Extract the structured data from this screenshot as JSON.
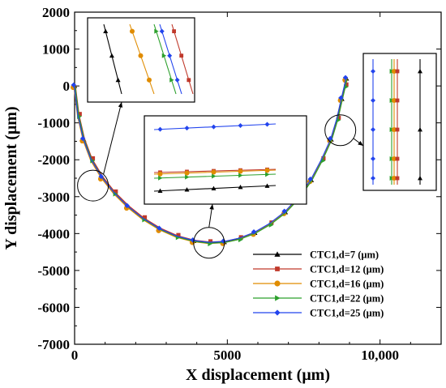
{
  "chart_data": {
    "type": "line",
    "xlabel": "X  displacement (μm)",
    "ylabel": "Y displacement (μm)",
    "xlim": [
      0,
      12000
    ],
    "ylim": [
      -7000,
      2000
    ],
    "x_ticks": [
      "0",
      "5000",
      "10,000"
    ],
    "x_tick_values": [
      0,
      5000,
      10000
    ],
    "y_ticks": [
      "2000",
      "1000",
      "0",
      "-1000",
      "-2000",
      "-3000",
      "-4000",
      "-5000",
      "-6000",
      "-7000"
    ],
    "y_tick_values": [
      2000,
      1000,
      0,
      -1000,
      -2000,
      -3000,
      -4000,
      -5000,
      -6000,
      -7000
    ],
    "legend_position": "bottom-right",
    "curve": {
      "x": [
        0,
        120,
        300,
        550,
        900,
        1300,
        1750,
        2250,
        2800,
        3350,
        3900,
        4400,
        4900,
        5400,
        5900,
        6400,
        6900,
        7350,
        7750,
        8100,
        8400,
        8600,
        8750,
        8850,
        8900
      ],
      "y": [
        0,
        -800,
        -1450,
        -2000,
        -2480,
        -2900,
        -3270,
        -3600,
        -3880,
        -4080,
        -4200,
        -4250,
        -4230,
        -4140,
        -3980,
        -3740,
        -3420,
        -3020,
        -2550,
        -2000,
        -1450,
        -900,
        -350,
        0,
        200
      ]
    },
    "series": [
      {
        "name": "CTC1,d=7  (μm)",
        "color": "#000000",
        "marker": "triangle"
      },
      {
        "name": "CTC1,d=12 (μm)",
        "color": "#c0392b",
        "marker": "square"
      },
      {
        "name": "CTC1,d=16 (μm)",
        "color": "#e08c00",
        "marker": "circle"
      },
      {
        "name": "CTC1,d=22 (μm)",
        "color": "#2ca02c",
        "marker": "triangle-right"
      },
      {
        "name": "CTC1,d=25 (μm)",
        "color": "#2244ee",
        "marker": "diamond"
      }
    ],
    "zoom_circles": [
      {
        "x": 600,
        "y": -2700
      },
      {
        "x": 4400,
        "y": -4250
      },
      {
        "x": 8700,
        "y": -1200
      }
    ]
  }
}
